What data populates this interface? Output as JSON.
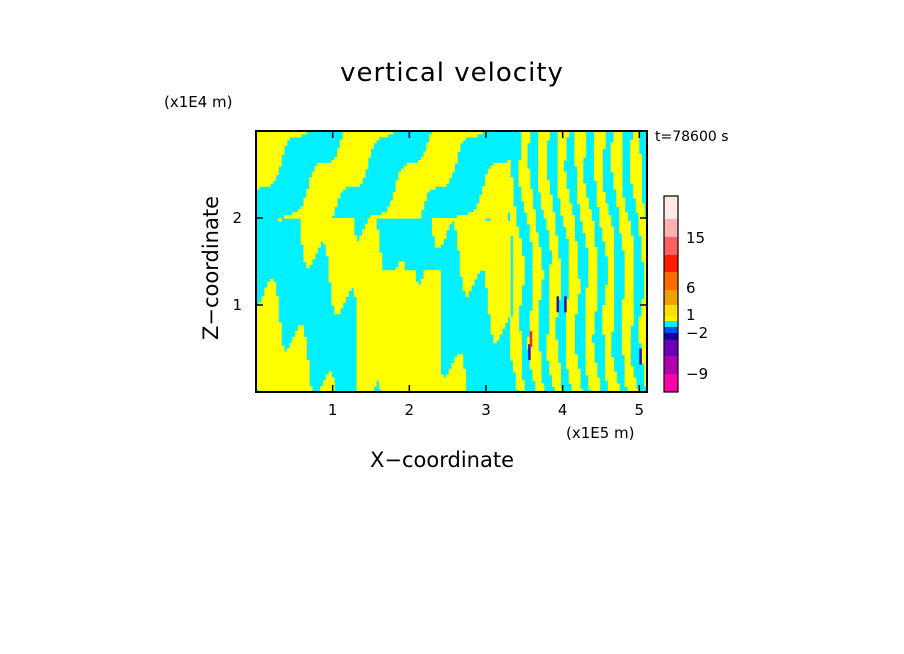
{
  "chart_data": {
    "type": "heatmap",
    "title": "vertical velocity",
    "xlabel": "X−coordinate",
    "ylabel": "Z−coordinate",
    "x_unit": "(x1E5 m)",
    "y_unit": "(x1E4 m)",
    "time_label": "t=78600 s",
    "xlim": [
      0,
      5.1
    ],
    "ylim": [
      0,
      3
    ],
    "x_ticks": [
      1,
      2,
      3,
      4,
      5
    ],
    "y_ticks": [
      1,
      2
    ],
    "colorbar": {
      "tick_labels": [
        "15",
        "6",
        "1",
        "−2",
        "−9"
      ],
      "tick_values": [
        15,
        6,
        1,
        -2,
        -9
      ],
      "colors": [
        "#ff00a8",
        "#b000b0",
        "#6a00b8",
        "#1400a0",
        "#0050ff",
        "#00f0ff",
        "#fff200",
        "#ffe000",
        "#f0a000",
        "#ff6a00",
        "#ff1a00",
        "#ff6060",
        "#ffb0b0",
        "#ffe8e8"
      ]
    },
    "field_colors": {
      "positive": "#ffff00",
      "negative": "#00f0ff",
      "strong_negative": "#3010b0",
      "strong_positive": "#ff2020"
    }
  }
}
